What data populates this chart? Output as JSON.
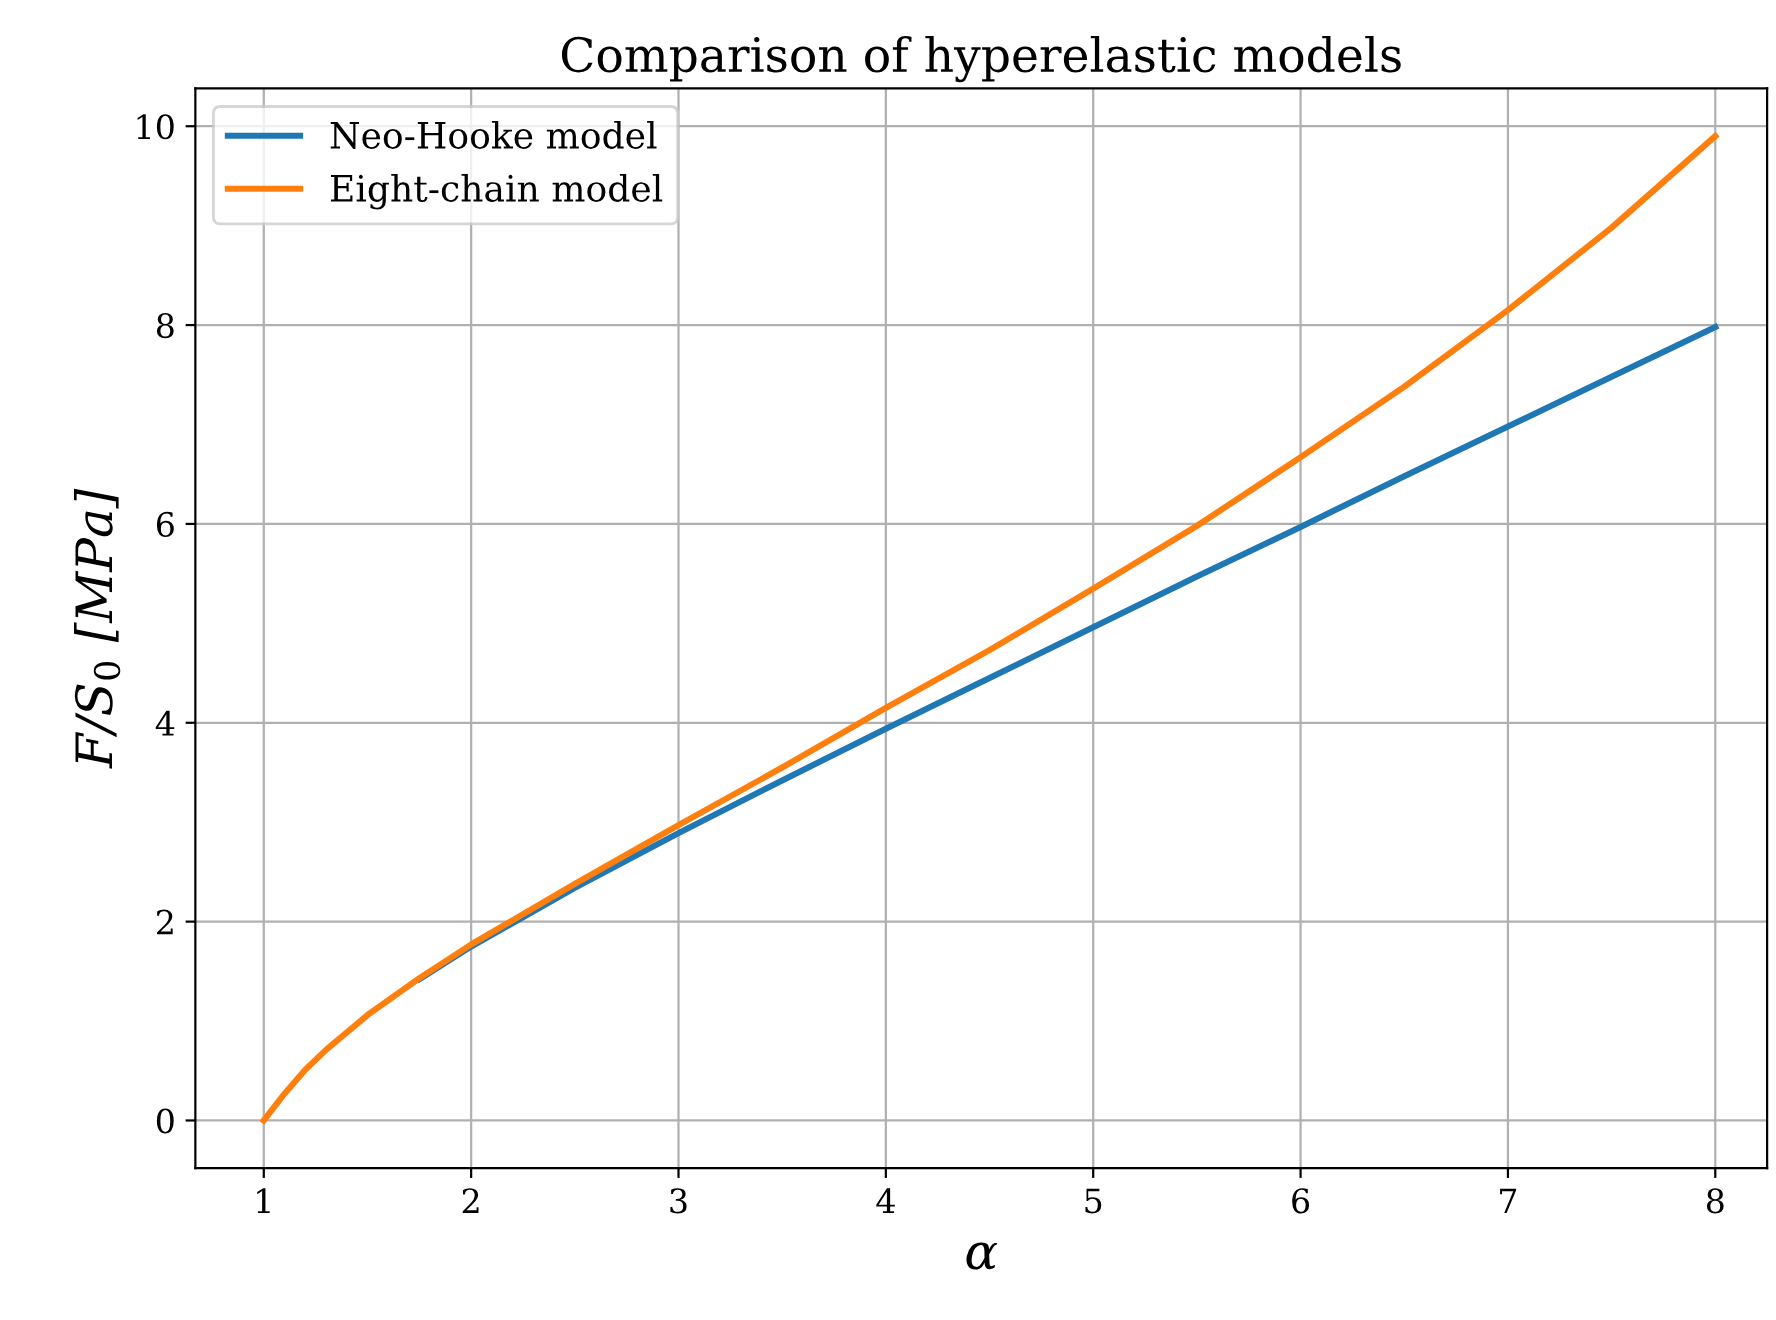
{
  "chart_data": {
    "type": "line",
    "title": "Comparison of hyperelastic models",
    "xlabel": "α",
    "ylabel": "F/S$_{0}$ [MPa]",
    "x": [
      1,
      1.1,
      1.2,
      1.3,
      1.5,
      1.75,
      2,
      2.5,
      3,
      3.5,
      4,
      4.5,
      5,
      5.5,
      6,
      6.5,
      7,
      7.5,
      8
    ],
    "series": [
      {
        "name": "Neo-Hooke model",
        "color": "#1f77b4",
        "values": [
          null,
          null,
          null,
          null,
          null,
          1.42,
          1.75,
          2.34,
          2.89,
          3.42,
          3.94,
          4.45,
          4.96,
          5.47,
          5.97,
          6.48,
          6.98,
          7.48,
          7.98
        ]
      },
      {
        "name": "Eight-chain model",
        "color": "#ff7f0e",
        "values": [
          0,
          0.27,
          0.51,
          0.71,
          1.06,
          1.43,
          1.77,
          2.38,
          2.97,
          3.55,
          4.15,
          4.73,
          5.35,
          5.98,
          6.67,
          7.38,
          8.15,
          8.98,
          9.9
        ]
      }
    ],
    "xlim": [
      0.67,
      8.25
    ],
    "ylim": [
      -0.48,
      10.38
    ],
    "xticks": [
      1,
      2,
      3,
      4,
      5,
      6,
      7,
      8
    ],
    "yticks": [
      0,
      2,
      4,
      6,
      8,
      10
    ],
    "grid": true,
    "legend": "top left",
    "line_style": "solid",
    "marker": "none"
  }
}
